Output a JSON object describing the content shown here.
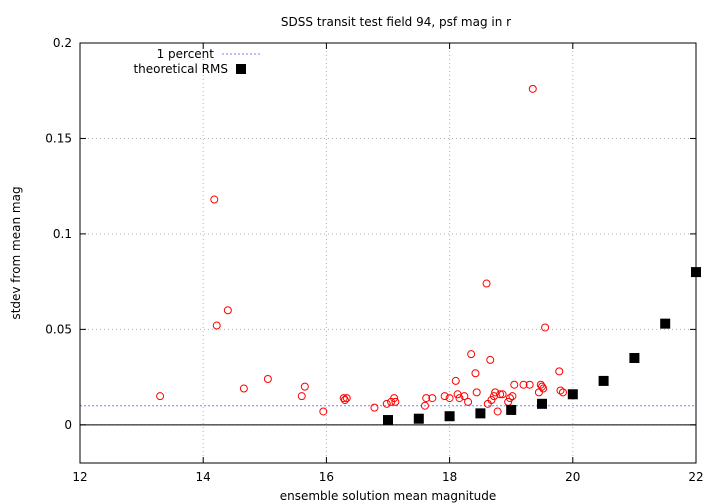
{
  "chart_data": {
    "type": "scatter",
    "title": "SDSS transit test field 94, psf mag in r",
    "xlabel": "ensemble solution mean magnitude",
    "ylabel": "stdev from mean mag",
    "xlim": [
      12,
      22
    ],
    "ylim": [
      -0.02,
      0.2
    ],
    "x_ticks": [
      12,
      14,
      16,
      18,
      20,
      22
    ],
    "y_ticks": [
      0,
      0.05,
      0.1,
      0.15,
      0.2
    ],
    "x_tick_labels": [
      "12",
      "14",
      "16",
      "18",
      "20",
      "22"
    ],
    "y_tick_labels": [
      "0",
      "0.05",
      "0.1",
      "0.15",
      "0.2"
    ],
    "grid": true,
    "zero_line": 0,
    "legend_position": "top-left",
    "legend": [
      {
        "label": "1 percent",
        "kind": "reference-line"
      },
      {
        "label": "theoretical RMS",
        "kind": "square-series"
      }
    ],
    "reference_line": {
      "label": "1 percent",
      "y": 0.01,
      "color": "#7f7fff"
    },
    "series": [
      {
        "color": "#ff0000",
        "marker": "open-circle",
        "points": [
          [
            13.3,
            0.015
          ],
          [
            14.18,
            0.118
          ],
          [
            14.22,
            0.052
          ],
          [
            14.4,
            0.06
          ],
          [
            14.66,
            0.019
          ],
          [
            15.05,
            0.024
          ],
          [
            15.6,
            0.015
          ],
          [
            15.65,
            0.02
          ],
          [
            15.95,
            0.007
          ],
          [
            16.28,
            0.014
          ],
          [
            16.3,
            0.013
          ],
          [
            16.33,
            0.014
          ],
          [
            16.78,
            0.009
          ],
          [
            16.98,
            0.011
          ],
          [
            17.05,
            0.012
          ],
          [
            17.1,
            0.014
          ],
          [
            17.12,
            0.012
          ],
          [
            17.6,
            0.01
          ],
          [
            17.62,
            0.014
          ],
          [
            17.72,
            0.014
          ],
          [
            17.92,
            0.015
          ],
          [
            18.0,
            0.014
          ],
          [
            18.1,
            0.023
          ],
          [
            18.13,
            0.016
          ],
          [
            18.16,
            0.014
          ],
          [
            18.24,
            0.015
          ],
          [
            18.3,
            0.012
          ],
          [
            18.35,
            0.037
          ],
          [
            18.42,
            0.027
          ],
          [
            18.44,
            0.017
          ],
          [
            18.6,
            0.074
          ],
          [
            18.62,
            0.011
          ],
          [
            18.66,
            0.034
          ],
          [
            18.68,
            0.013
          ],
          [
            18.72,
            0.015
          ],
          [
            18.74,
            0.017
          ],
          [
            18.78,
            0.007
          ],
          [
            18.82,
            0.016
          ],
          [
            18.86,
            0.016
          ],
          [
            18.95,
            0.012
          ],
          [
            18.98,
            0.014
          ],
          [
            19.02,
            0.015
          ],
          [
            19.05,
            0.021
          ],
          [
            19.2,
            0.021
          ],
          [
            19.3,
            0.021
          ],
          [
            19.35,
            0.176
          ],
          [
            19.45,
            0.017
          ],
          [
            19.48,
            0.021
          ],
          [
            19.5,
            0.02
          ],
          [
            19.52,
            0.019
          ],
          [
            19.55,
            0.051
          ],
          [
            19.78,
            0.028
          ],
          [
            19.8,
            0.018
          ],
          [
            19.84,
            0.017
          ]
        ]
      },
      {
        "name": "theoretical RMS",
        "color": "#000000",
        "marker": "filled-square",
        "points": [
          [
            17.0,
            0.0025
          ],
          [
            17.5,
            0.0032
          ],
          [
            18.0,
            0.0045
          ],
          [
            18.5,
            0.006
          ],
          [
            19.0,
            0.0078
          ],
          [
            19.5,
            0.011
          ],
          [
            20.0,
            0.016
          ],
          [
            20.5,
            0.023
          ],
          [
            21.0,
            0.035
          ],
          [
            21.5,
            0.053
          ],
          [
            22.0,
            0.08
          ]
        ]
      }
    ]
  }
}
